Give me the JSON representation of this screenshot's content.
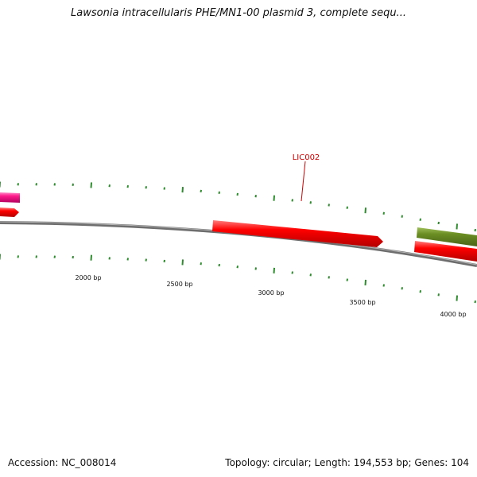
{
  "title": "Lawsonia intracellularis PHE/MN1-00 plasmid 3, complete sequ...",
  "footer": {
    "accession": "Accession: NC_008014",
    "summary": "Topology: circular; Length: 194,553 bp; Genes: 104"
  },
  "scale_labels": [
    "2000 bp",
    "2500 bp",
    "3000 bp",
    "3500 bp",
    "4000 bp"
  ],
  "genes": [
    {
      "label": "",
      "color": "#ff1a8c"
    },
    {
      "label": "",
      "color": "#ff0000"
    },
    {
      "label": "",
      "color": "#ff0000"
    },
    {
      "label": "",
      "color": "#6b8e23"
    },
    {
      "label": "",
      "color": "#ff0000"
    }
  ],
  "callout": {
    "label": "LIC002",
    "color": "#cc0000"
  },
  "colors": {
    "backbone": "#808080",
    "ticks": "#2e8b2e"
  }
}
